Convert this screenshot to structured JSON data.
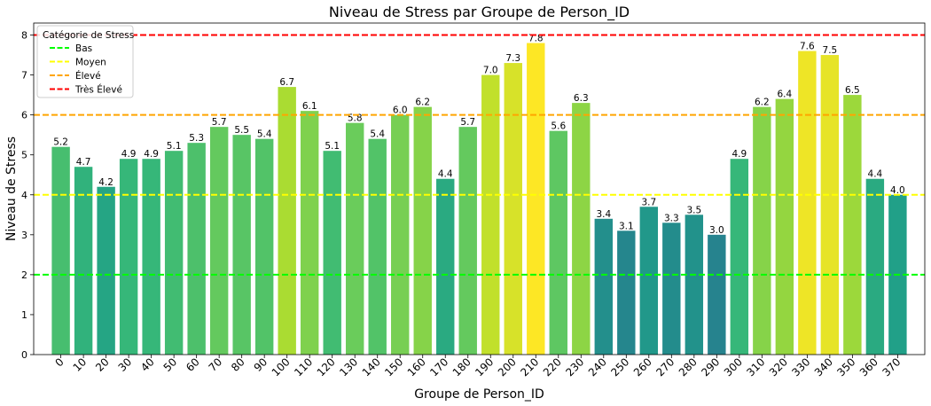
{
  "chart_data": {
    "type": "bar",
    "title": "Niveau de Stress par Groupe de Person_ID",
    "xlabel": "Groupe de Person_ID",
    "ylabel": "Niveau de Stress",
    "ylim": [
      0,
      8.3
    ],
    "yticks": [
      "0",
      "1",
      "2",
      "3",
      "4",
      "5",
      "6",
      "7",
      "8"
    ],
    "categories": [
      "0",
      "10",
      "20",
      "30",
      "40",
      "50",
      "60",
      "70",
      "80",
      "90",
      "100",
      "110",
      "120",
      "130",
      "140",
      "150",
      "160",
      "170",
      "180",
      "190",
      "200",
      "210",
      "220",
      "230",
      "240",
      "250",
      "260",
      "270",
      "280",
      "290",
      "300",
      "310",
      "320",
      "330",
      "340",
      "350",
      "360",
      "370"
    ],
    "values": [
      5.2,
      4.7,
      4.2,
      4.9,
      4.9,
      5.1,
      5.3,
      5.7,
      5.5,
      5.4,
      6.7,
      6.1,
      5.1,
      5.8,
      5.4,
      6.0,
      6.2,
      4.4,
      5.7,
      7.0,
      7.3,
      7.8,
      5.6,
      6.3,
      3.4,
      3.1,
      3.7,
      3.3,
      3.5,
      3.0,
      4.9,
      6.2,
      6.4,
      7.6,
      7.5,
      6.5,
      4.4,
      4.0
    ],
    "value_labels": [
      "5.2",
      "4.7",
      "4.2",
      "4.9",
      "4.9",
      "5.1",
      "5.3",
      "5.7",
      "5.5",
      "5.4",
      "6.7",
      "6.1",
      "5.1",
      "5.8",
      "5.4",
      "6.0",
      "6.2",
      "4.4",
      "5.7",
      "7.0",
      "7.3",
      "7.8",
      "5.6",
      "6.3",
      "3.4",
      "3.1",
      "3.7",
      "3.3",
      "3.5",
      "3.0",
      "4.9",
      "6.2",
      "6.4",
      "7.6",
      "7.5",
      "6.5",
      "4.4",
      "4.0"
    ],
    "colormap": "viridis",
    "reference_lines": [
      {
        "name": "Bas",
        "value": 2,
        "color": "#00ff00"
      },
      {
        "name": "Moyen",
        "value": 4,
        "color": "#ffff00"
      },
      {
        "name": "Élevé",
        "value": 6,
        "color": "#ffa500"
      },
      {
        "name": "Très Élevé",
        "value": 8,
        "color": "#ff0000"
      }
    ],
    "legend": {
      "title": "Catégorie de Stress",
      "placement": "top-left"
    },
    "grid": false
  }
}
